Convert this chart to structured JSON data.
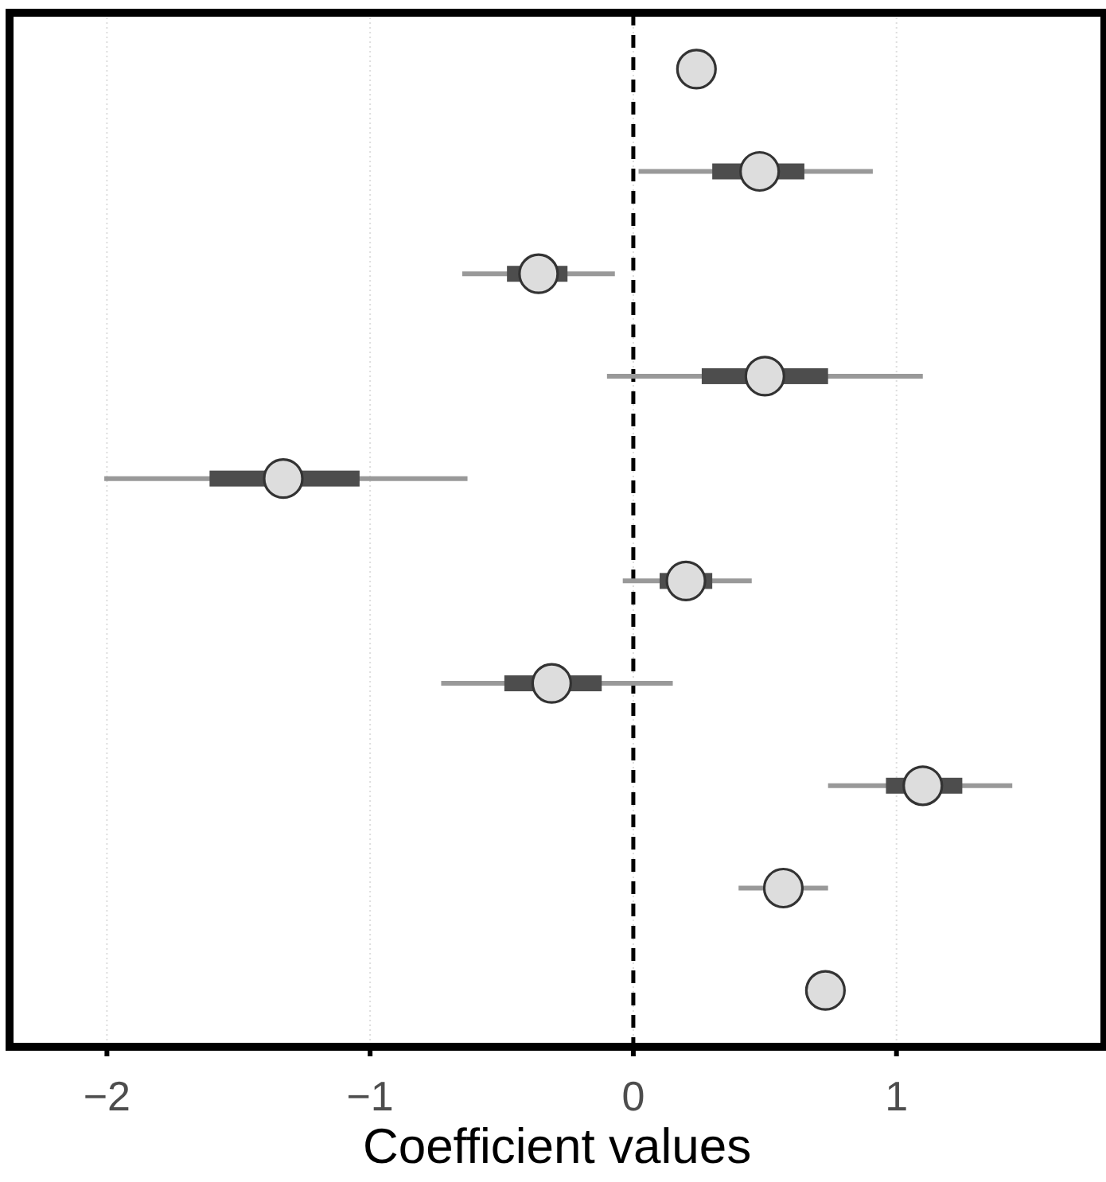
{
  "chart_data": {
    "type": "scatter",
    "orientation": "horizontal",
    "xlabel": "Coefficient values",
    "categories": [
      null,
      null,
      null,
      null,
      null,
      null,
      null,
      null,
      null,
      null
    ],
    "xlim": [
      -2.37,
      1.79
    ],
    "xticks": [
      {
        "value": -2,
        "label": "−2"
      },
      {
        "value": -1,
        "label": "−1"
      },
      0,
      1
    ],
    "grid": "x",
    "marker": "circle",
    "ref_lines": [
      {
        "axis": "x",
        "value": 0,
        "color": "#000000",
        "line_style": "dashed"
      }
    ],
    "series": [
      {
        "type": "bar",
        "color": "#4d4d4d",
        "base": [
          null,
          0.3,
          -0.48,
          0.26,
          -1.61,
          0.1,
          -0.49,
          0.96,
          null,
          null
        ],
        "values": [
          null,
          0.35,
          0.23,
          0.48,
          0.57,
          0.2,
          0.37,
          0.29,
          null,
          null
        ]
      },
      {
        "type": "scatter",
        "color": "#dddddd",
        "values": [
          0.24,
          0.48,
          -0.36,
          0.5,
          -1.33,
          0.2,
          -0.31,
          1.1,
          0.57,
          0.73
        ],
        "errors": [
          null,
          [
            0.02,
            0.91
          ],
          [
            -0.65,
            -0.07
          ],
          [
            -0.1,
            1.1
          ],
          [
            -2.01,
            -0.63
          ],
          [
            -0.04,
            0.45
          ],
          [
            -0.73,
            0.15
          ],
          [
            0.74,
            1.44
          ],
          [
            0.4,
            0.74
          ],
          null
        ]
      }
    ]
  }
}
